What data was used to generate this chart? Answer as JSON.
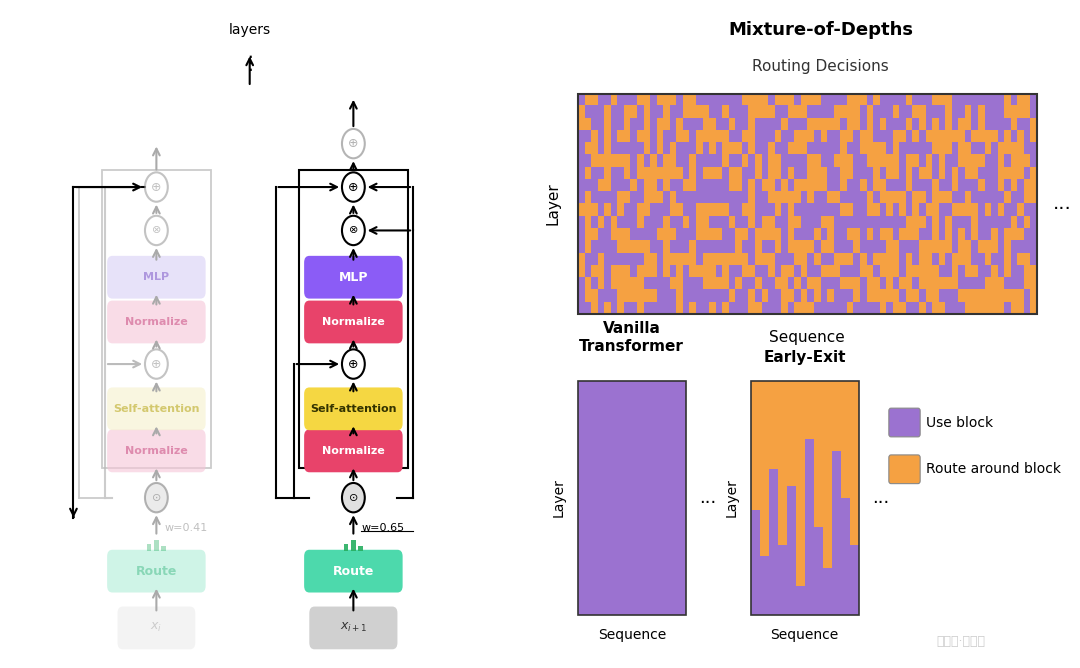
{
  "bg_color": "#ffffff",
  "purple_color": "#9b72d0",
  "orange_color": "#f5a142",
  "mlp_color": "#8b5cf6",
  "normalize_color": "#e8436a",
  "self_attn_color": "#f5d742",
  "route_color": "#4dd9ac",
  "xi_color": "#d0d0d0",
  "title_mod": "Mixture-of-Depths",
  "subtitle_mod": "Routing Decisions",
  "seq_label": "Sequence",
  "layer_label": "Layer",
  "vanilla_title": "Vanilla\nTransformer",
  "early_exit_title": "Early-Exit",
  "legend_use": "Use block",
  "legend_route": "Route around block",
  "w1": "w=0.41",
  "w2": "w=0.65",
  "layers_text": "layers",
  "faded_mlp_color": "#d8cff5",
  "faded_norm_color": "#f5c5d8",
  "faded_attn_color": "#f5f0cc",
  "faded_route_color": "#a0ead0"
}
